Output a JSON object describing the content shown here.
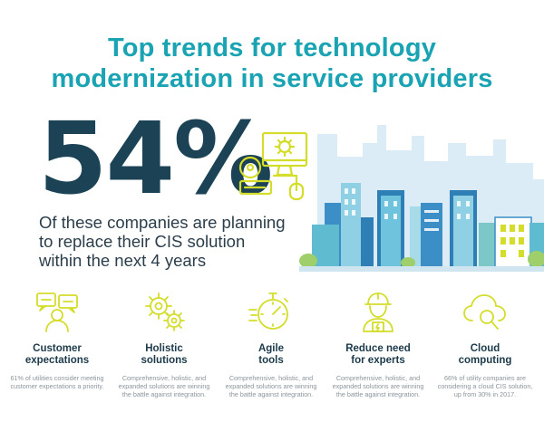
{
  "title": {
    "line1": "Top trends for technology",
    "line2": "modernization in service providers"
  },
  "stat": {
    "value": "54%",
    "desc_line1": "Of these companies are planning",
    "desc_line2": "to replace their CIS solution",
    "desc_line3": "within the next 4 years"
  },
  "colors": {
    "title": "#1aa3b2",
    "stat": "#1c4256",
    "icon_accent": "#d4dd2a",
    "building_blue": "#2d7fb5"
  },
  "icons": {
    "stat": "computer-gear-cd-icon",
    "illustration": "city-skyline"
  },
  "trends": [
    {
      "icon": "customer-chat-icon",
      "heading_line1": "Customer",
      "heading_line2": "expectations",
      "desc_line1": "61% of utilities consider meeting",
      "desc_line2": "customer expectations a priority.",
      "desc_line3": ""
    },
    {
      "icon": "gears-icon",
      "heading_line1": "Holistic",
      "heading_line2": "solutions",
      "desc_line1": "Comprehensive, holistic, and",
      "desc_line2": "expanded solutions are winning",
      "desc_line3": "the battle against integration."
    },
    {
      "icon": "stopwatch-icon",
      "heading_line1": "Agile",
      "heading_line2": "tools",
      "desc_line1": "Comprehensive, holistic, and",
      "desc_line2": "expanded solutions are winning",
      "desc_line3": "the battle against integration."
    },
    {
      "icon": "expert-worker-icon",
      "heading_line1": "Reduce need",
      "heading_line2": "for experts",
      "desc_line1": "Comprehensive, holistic, and",
      "desc_line2": "expanded solutions are winning",
      "desc_line3": "the battle against integration."
    },
    {
      "icon": "cloud-search-icon",
      "heading_line1": "Cloud",
      "heading_line2": "computing",
      "desc_line1": "66% of utility companies are",
      "desc_line2": "considering a cloud CIS solution,",
      "desc_line3": "up from 30% in 2017."
    }
  ]
}
